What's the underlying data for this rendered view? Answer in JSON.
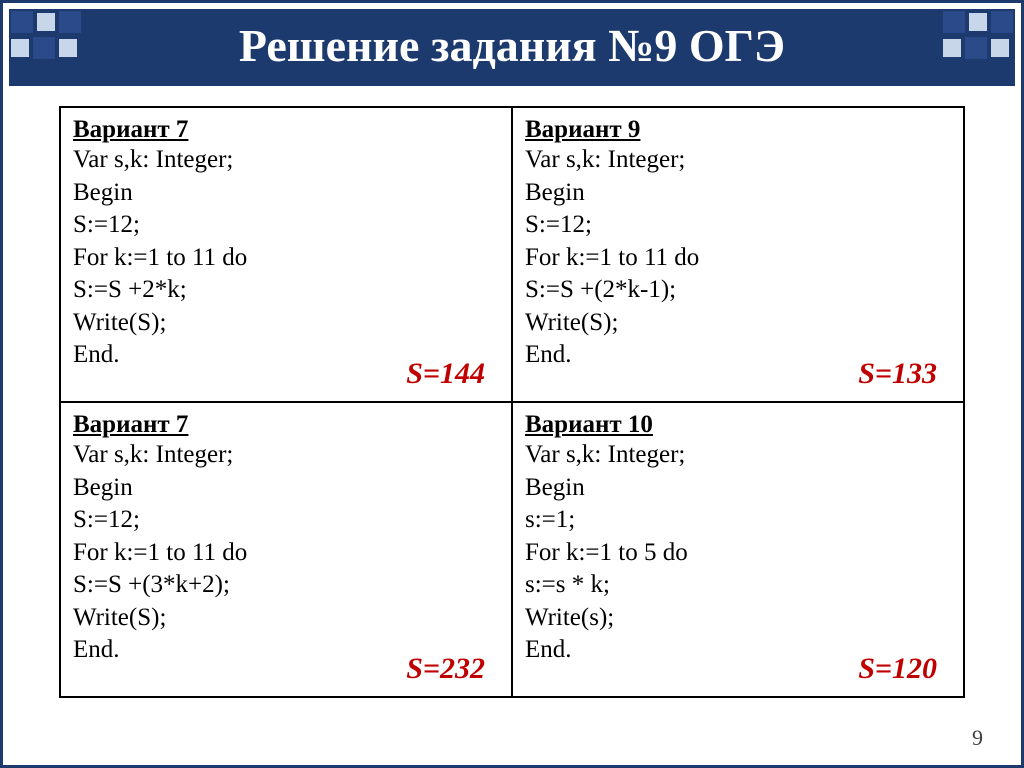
{
  "title": "Решение задания №9 ОГЭ",
  "page_number": "9",
  "colors": {
    "frame": "#1d3a6e",
    "title_bg": "#1d3a6e",
    "title_fg": "#ffffff",
    "answer": "#c00000",
    "border": "#000000",
    "deco_dark": "#2a4a8a",
    "deco_light": "#c8d6ea"
  },
  "typography": {
    "title_fontsize": 46,
    "code_fontsize": 25,
    "answer_fontsize": 30,
    "pagenum_fontsize": 22,
    "family": "Times New Roman"
  },
  "cells": [
    {
      "head": "Вариант 7",
      "lines": [
        "Var s,k: Integer;",
        "Begin",
        "S:=12;",
        "For k:=1 to 11 do",
        "S:=S +2*k;",
        "Write(S);",
        "End."
      ],
      "answer": "S=144"
    },
    {
      "head": "Вариант 9",
      "lines": [
        "Var s,k: Integer;",
        "Begin",
        "S:=12;",
        "For k:=1 to 11 do",
        "S:=S +(2*k-1);",
        "Write(S);",
        "End."
      ],
      "answer": "S=133"
    },
    {
      "head": "Вариант 7",
      "lines": [
        "Var s,k: Integer;",
        "Begin",
        "S:=12;",
        "For k:=1 to 11 do",
        "S:=S +(3*k+2);",
        "Write(S);",
        "End."
      ],
      "answer": "S=232"
    },
    {
      "head": "Вариант 10",
      "lines": [
        "Var s,k: Integer;",
        "Begin",
        "s:=1;",
        "For k:=1 to 5 do",
        "s:=s * k;",
        "Write(s);",
        "End."
      ],
      "answer": "S=120"
    }
  ]
}
